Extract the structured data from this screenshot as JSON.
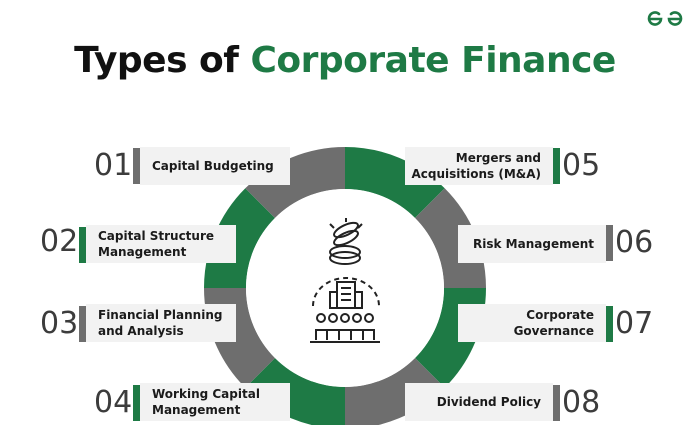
{
  "title": {
    "part1": "Types of ",
    "part2": "Corporate Finance"
  },
  "brand": {
    "logo_icon": "gfg-logo-icon",
    "color": "#1e7a45"
  },
  "colors": {
    "green": "#1e7a45",
    "grey": "#6e6e6e",
    "box": "#f2f2f2"
  },
  "center_icons": [
    "coins-icon",
    "corporate-building-icon"
  ],
  "items": [
    {
      "number": "01",
      "label": "Capital Budgeting",
      "accent": "grey"
    },
    {
      "number": "02",
      "label": "Capital Structure Management",
      "accent": "green"
    },
    {
      "number": "03",
      "label": "Financial Planning and Analysis",
      "accent": "grey"
    },
    {
      "number": "04",
      "label": "Working Capital Management",
      "accent": "green"
    },
    {
      "number": "05",
      "label": "Mergers and Acquisitions (M&A)",
      "accent": "green"
    },
    {
      "number": "06",
      "label": "Risk Management",
      "accent": "grey"
    },
    {
      "number": "07",
      "label": "Corporate Governance",
      "accent": "green"
    },
    {
      "number": "08",
      "label": "Dividend Policy",
      "accent": "grey"
    }
  ]
}
